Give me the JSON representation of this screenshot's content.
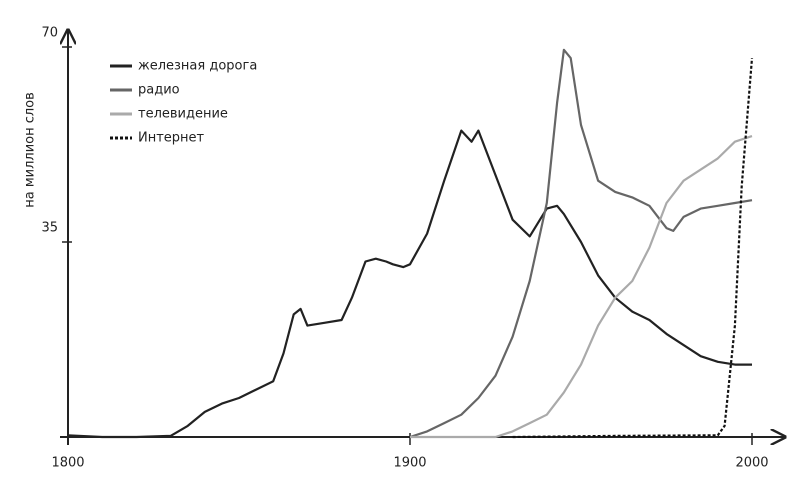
{
  "chart_data": {
    "type": "line",
    "y_label": "на миллион слов",
    "xlim": [
      1800,
      2000
    ],
    "ylim": [
      0,
      70
    ],
    "xticks": [
      1800,
      1900,
      2000
    ],
    "yticks": [
      35,
      70
    ],
    "legend": "upper left",
    "series": [
      {
        "name": "железная дорога",
        "color": "#222222",
        "dash": false,
        "x": [
          1800,
          1810,
          1820,
          1830,
          1835,
          1840,
          1845,
          1850,
          1855,
          1860,
          1863,
          1866,
          1868,
          1870,
          1875,
          1880,
          1883,
          1887,
          1890,
          1893,
          1895,
          1898,
          1900,
          1905,
          1910,
          1915,
          1918,
          1920,
          1925,
          1930,
          1935,
          1940,
          1943,
          1945,
          1950,
          1955,
          1960,
          1965,
          1970,
          1975,
          1980,
          1985,
          1990,
          1995,
          2000
        ],
        "values": [
          0.3,
          0,
          0,
          0.2,
          2,
          4.5,
          6,
          7,
          8.5,
          10,
          15,
          22,
          23,
          20,
          20.5,
          21,
          25,
          31.5,
          32,
          31.5,
          31,
          30.5,
          31,
          36.5,
          46,
          55,
          53,
          55,
          47,
          39,
          36,
          41,
          41.5,
          40,
          35,
          29,
          25,
          22.5,
          21,
          18.5,
          16.5,
          14.5,
          13.5,
          13,
          13
        ]
      },
      {
        "name": "радио",
        "color": "#666666",
        "dash": false,
        "x": [
          1900,
          1905,
          1910,
          1915,
          1920,
          1925,
          1930,
          1935,
          1940,
          1943,
          1945,
          1947,
          1950,
          1955,
          1960,
          1965,
          1970,
          1975,
          1977,
          1980,
          1985,
          1990,
          1995,
          2000
        ],
        "values": [
          0,
          1,
          2.5,
          4,
          7,
          11,
          18,
          28,
          42,
          60,
          69.5,
          68,
          56,
          46,
          44,
          43,
          41.5,
          37.5,
          37,
          39.5,
          41,
          41.5,
          42,
          42.5
        ]
      },
      {
        "name": "телевидение",
        "color": "#aaaaaa",
        "dash": false,
        "x": [
          1900,
          1925,
          1930,
          1935,
          1940,
          1945,
          1950,
          1955,
          1960,
          1965,
          1970,
          1975,
          1980,
          1985,
          1990,
          1995,
          2000
        ],
        "values": [
          0,
          0,
          1,
          2.5,
          4,
          8,
          13,
          20,
          25,
          28,
          34,
          42,
          46,
          48,
          50,
          53,
          54
        ]
      },
      {
        "name": "Интернет",
        "color": "#111111",
        "dash": true,
        "x": [
          1930,
          1960,
          1990,
          1992,
          1995,
          1997,
          2000
        ],
        "values": [
          0,
          0.2,
          0.3,
          2,
          20,
          45,
          68
        ]
      }
    ]
  }
}
